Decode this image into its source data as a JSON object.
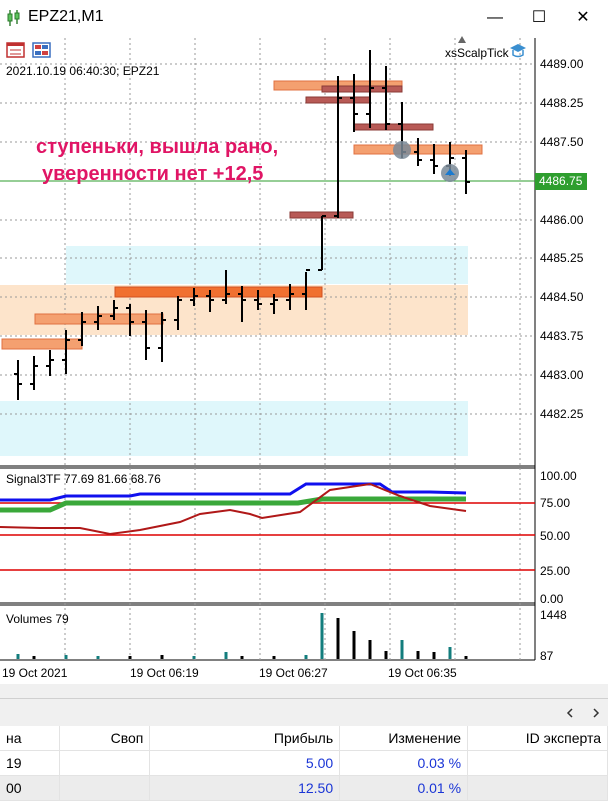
{
  "window": {
    "title": "EPZ21,M1",
    "minimize": "—",
    "maximize": "☐",
    "close": "✕"
  },
  "chart": {
    "info_label": "2021.10.19 06:40:30; EPZ21",
    "expert_label": "xsScalpTick",
    "annotation_line1": "ступеньки, вышла рано,",
    "annotation_line2": "уверенности нет +12,5",
    "current_price": "4486.75",
    "price_ticks": [
      "4489.00",
      "4488.25",
      "4487.50",
      "4486.75",
      "4486.00",
      "4485.25",
      "4484.50",
      "4483.75",
      "4483.00",
      "4482.25"
    ],
    "time_labels": [
      "19 Oct 2021",
      "19 Oct 06:19",
      "19 Oct 06:27",
      "19 Oct 06:35"
    ],
    "indicator_label": "Signal3TF 77.69 81.66 68.76",
    "indicator_ticks": [
      "100.00",
      "75.00",
      "50.00",
      "25.00",
      "0.00"
    ],
    "volume_label": "Volumes 79",
    "volume_ticks": [
      "1448",
      "87"
    ],
    "colors": {
      "up_zone": "#dff7fb",
      "down_zone": "#fde4cb",
      "level": "#f4a070",
      "level_dark": "#b85a56",
      "price_line": "#2e9e2e",
      "annotation": "#e01565",
      "signal_blue": "#1010ee",
      "signal_green": "#3aa83a",
      "signal_red": "#b01818",
      "level_line": "#dd0000"
    }
  },
  "table": {
    "headers": [
      "на",
      "Своп",
      "Прибыль",
      "Изменение",
      "ID эксперта"
    ],
    "rows": [
      [
        "19",
        "",
        "5.00",
        "0.03 %",
        ""
      ],
      [
        "00",
        "",
        "12.50",
        "0.01 %",
        ""
      ]
    ]
  }
}
